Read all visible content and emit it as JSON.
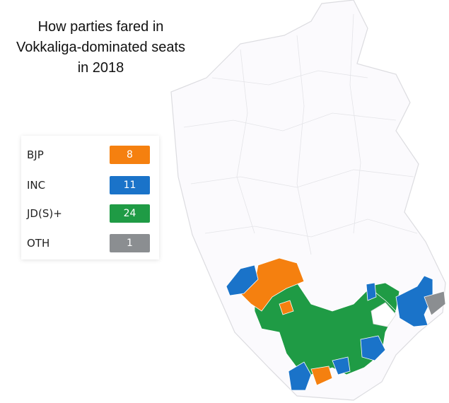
{
  "title_lines": [
    "How parties fared in",
    "Vokkaliga-dominated seats",
    "in 2018"
  ],
  "legend": [
    {
      "name": "BJP",
      "seats": 8,
      "color": "#f5800f"
    },
    {
      "name": "INC",
      "seats": 11,
      "color": "#1a73c9"
    },
    {
      "name": "JD(S)+",
      "seats": 24,
      "color": "#1f9b45"
    },
    {
      "name": "OTH",
      "seats": 1,
      "color": "#8b8e91"
    }
  ]
}
